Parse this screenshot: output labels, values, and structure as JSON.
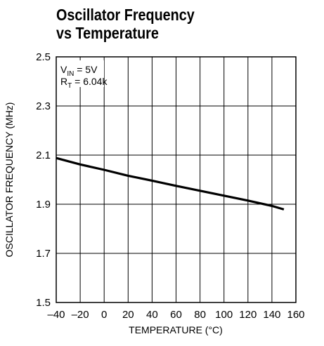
{
  "chart_data": {
    "type": "line",
    "title_lines": [
      "Oscillator Frequency",
      "vs Temperature"
    ],
    "xlabel": "TEMPERATURE (°C)",
    "ylabel": "OSCILLATOR FREQUENCY (MHz)",
    "xlim": [
      -40,
      160
    ],
    "ylim": [
      1.5,
      2.5
    ],
    "x_ticks": [
      -40,
      -20,
      0,
      20,
      40,
      60,
      80,
      100,
      120,
      140,
      160
    ],
    "x_tick_labels": [
      "–40",
      "–20",
      "0",
      "20",
      "40",
      "60",
      "80",
      "100",
      "120",
      "140",
      "160"
    ],
    "y_ticks": [
      1.5,
      1.7,
      1.9,
      2.1,
      2.3,
      2.5
    ],
    "y_tick_labels": [
      "1.5",
      "1.7",
      "1.9",
      "2.1",
      "2.3",
      "2.5"
    ],
    "grid": true,
    "annotations": {
      "vin": {
        "main": "V",
        "sub": "IN",
        "rest": " = 5V"
      },
      "rt": {
        "main": "R",
        "sub": "T",
        "rest": " = 6.04k"
      }
    },
    "series": [
      {
        "x": [
          -40,
          -20,
          0,
          20,
          40,
          60,
          80,
          100,
          120,
          140,
          150
        ],
        "y": [
          2.088,
          2.062,
          2.04,
          2.016,
          1.996,
          1.975,
          1.955,
          1.935,
          1.915,
          1.893,
          1.879
        ]
      }
    ]
  }
}
